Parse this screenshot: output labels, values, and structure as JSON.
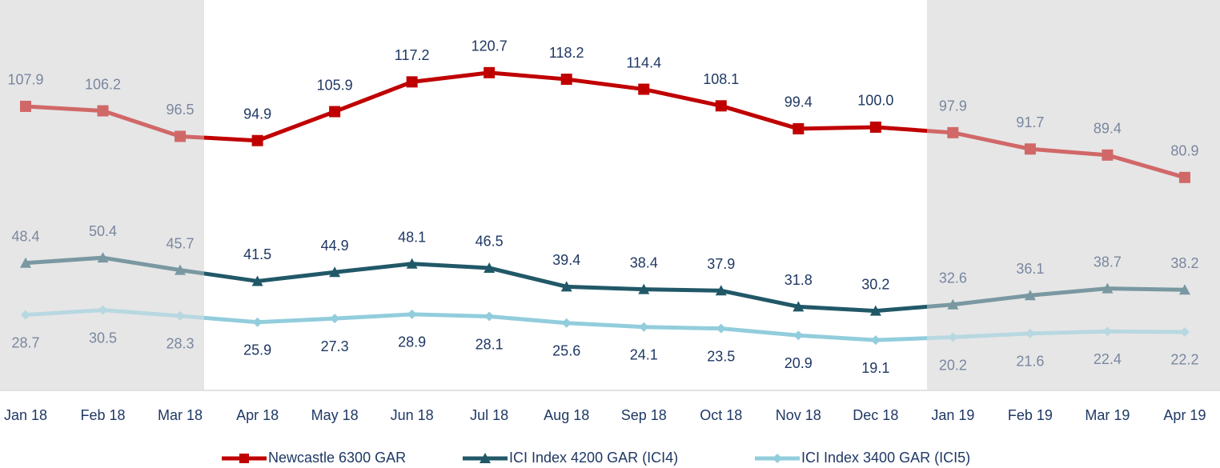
{
  "chart_data": {
    "type": "line",
    "categories": [
      "Jan 18",
      "Feb 18",
      "Mar 18",
      "Apr 18",
      "May 18",
      "Jun 18",
      "Jul 18",
      "Aug 18",
      "Sep 18",
      "Oct 18",
      "Nov 18",
      "Dec 18",
      "Jan 19",
      "Feb 19",
      "Mar 19",
      "Apr 19"
    ],
    "series": [
      {
        "name": "Newcastle 6300 GAR",
        "color": "#c00000",
        "marker": "square",
        "label_position": "above",
        "values": [
          107.9,
          106.2,
          96.5,
          94.9,
          105.9,
          117.2,
          120.7,
          118.2,
          114.4,
          108.1,
          99.4,
          100.0,
          97.9,
          91.7,
          89.4,
          80.9
        ],
        "value_labels": [
          "107.9",
          "106.2",
          "96.5",
          "94.9",
          "105.9",
          "117.2",
          "120.7",
          "118.2",
          "114.4",
          "108.1",
          "99.4",
          "100.0",
          "97.9",
          "91.7",
          "89.4",
          "80.9"
        ]
      },
      {
        "name": "ICI Index 4200 GAR (ICI4)",
        "color": "#215868",
        "marker": "triangle",
        "label_position": "above",
        "values": [
          48.4,
          50.4,
          45.7,
          41.5,
          44.9,
          48.1,
          46.5,
          39.4,
          38.4,
          37.9,
          31.8,
          30.2,
          32.6,
          36.1,
          38.7,
          38.2
        ]
      },
      {
        "name": "ICI Index 3400 GAR (ICI5)",
        "color": "#92cddc",
        "marker": "diamond",
        "label_position": "below",
        "values": [
          28.7,
          30.5,
          28.3,
          25.9,
          27.3,
          28.9,
          28.1,
          25.6,
          24.1,
          23.5,
          20.9,
          19.1,
          20.2,
          21.6,
          22.4,
          22.2
        ]
      }
    ],
    "ylim": [
      0,
      148
    ],
    "legend": "bottom"
  }
}
